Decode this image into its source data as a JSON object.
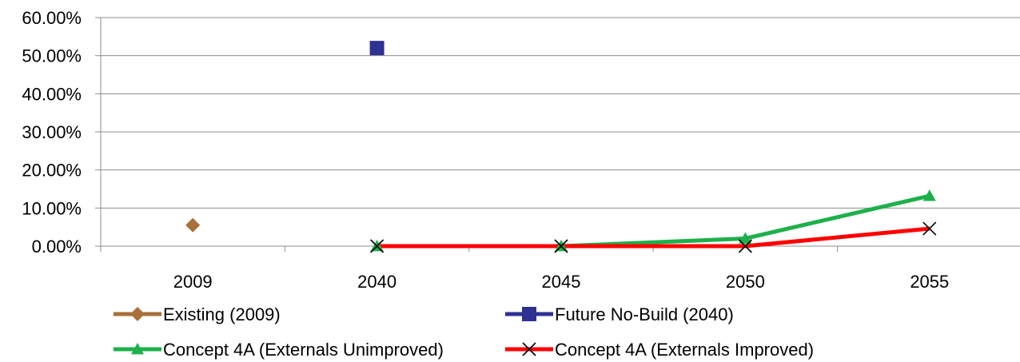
{
  "chart_data": {
    "type": "line",
    "categories": [
      "2009",
      "2040",
      "2045",
      "2050",
      "2055"
    ],
    "ylim": [
      0,
      0.6
    ],
    "yticks": [
      "0.00%",
      "10.00%",
      "20.00%",
      "30.00%",
      "40.00%",
      "50.00%",
      "60.00%"
    ],
    "grid": true,
    "legend_position": "bottom",
    "series": [
      {
        "name": "Existing (2009)",
        "color": "#A8703A",
        "marker": "diamond",
        "values": [
          0.055,
          null,
          null,
          null,
          null
        ]
      },
      {
        "name": "Future No-Build (2040)",
        "color": "#2E3192",
        "marker": "square",
        "values": [
          null,
          0.52,
          null,
          null,
          null
        ]
      },
      {
        "name": "Concept 4A (Externals Unimproved)",
        "color": "#1DB04B",
        "marker": "triangle",
        "values": [
          null,
          0.0,
          0.0,
          0.02,
          0.132
        ]
      },
      {
        "name": "Concept 4A (Externals Improved)",
        "color": "#FF0000",
        "marker": "x",
        "values": [
          null,
          0.0,
          0.0,
          0.0,
          0.046
        ]
      }
    ]
  }
}
